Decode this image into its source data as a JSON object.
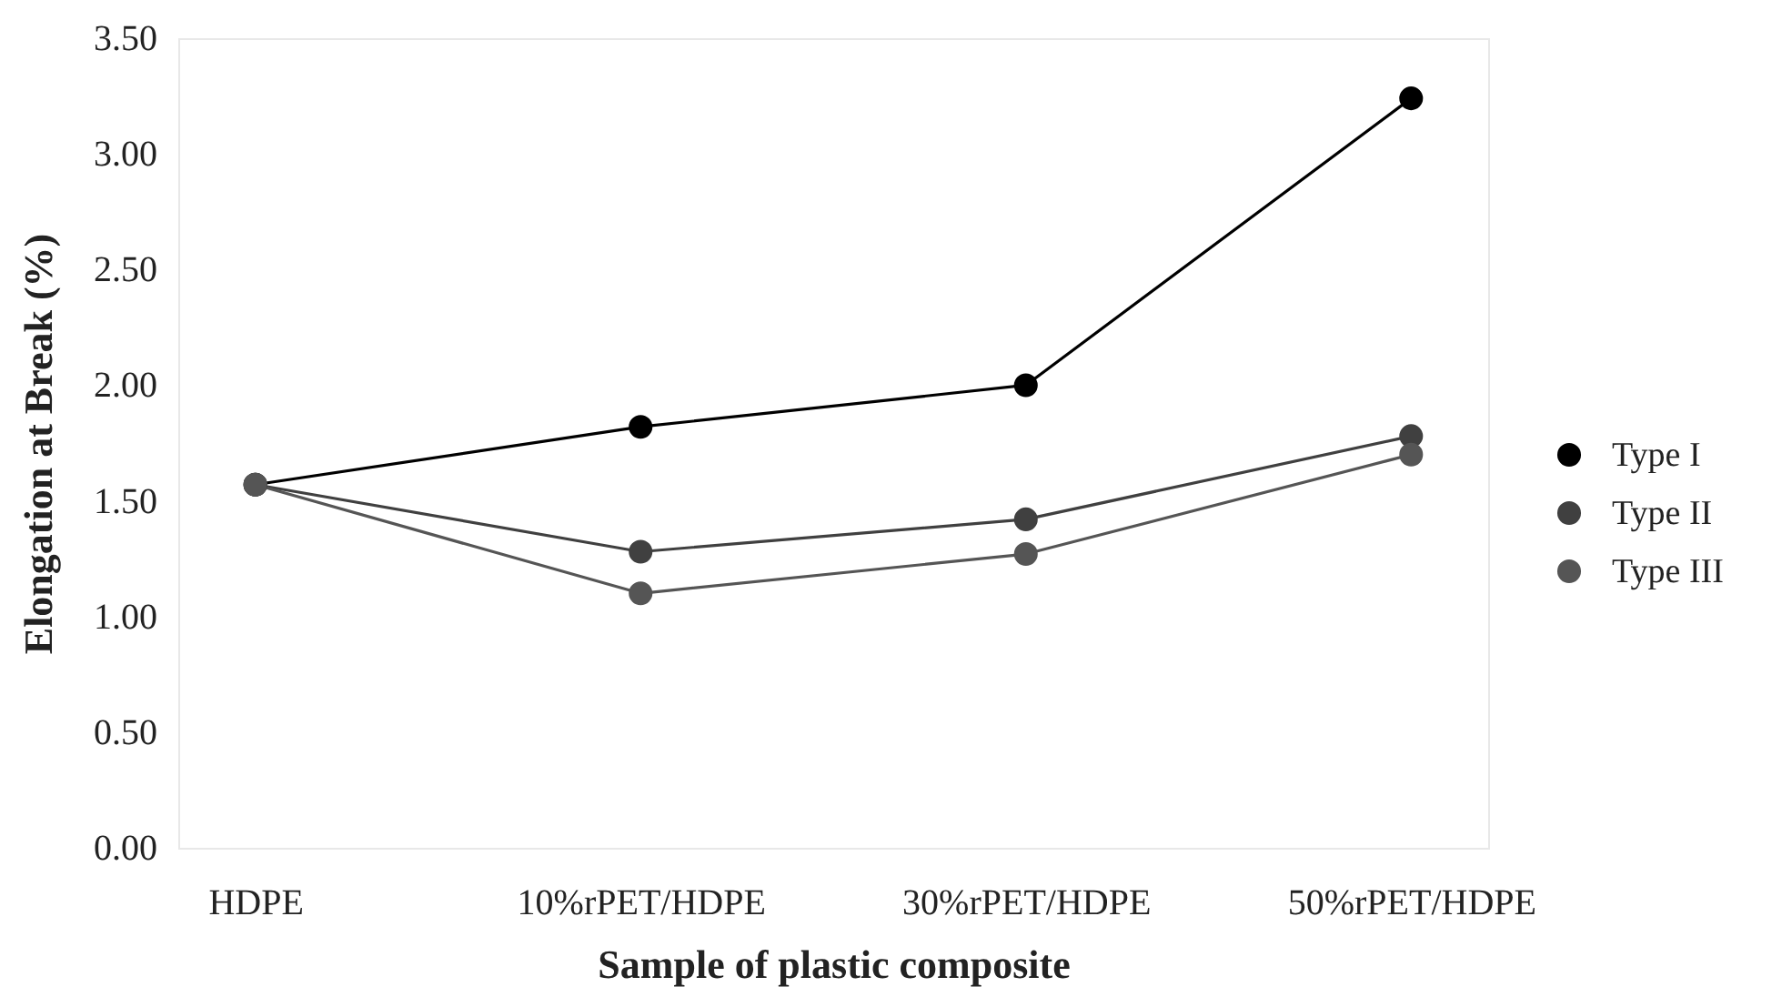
{
  "chart_data": {
    "type": "line",
    "xlabel": "Sample of plastic composite",
    "ylabel": "Elongation at Break (%)",
    "categories": [
      "HDPE",
      "10%rPET/HDPE",
      "30%rPET/HDPE",
      "50%rPET/HDPE"
    ],
    "series": [
      {
        "name": "Type I",
        "color": "#000000",
        "values": [
          1.57,
          1.82,
          2.0,
          3.24
        ]
      },
      {
        "name": "Type II",
        "color": "#404040",
        "values": [
          1.57,
          1.28,
          1.42,
          1.78
        ]
      },
      {
        "name": "Type III",
        "color": "#555555",
        "values": [
          1.57,
          1.1,
          1.27,
          1.7
        ]
      }
    ],
    "ylim": [
      0,
      3.5
    ],
    "yticks": [
      {
        "value": 0,
        "label": "0.00"
      },
      {
        "value": 0.5,
        "label": "0.50"
      },
      {
        "value": 1,
        "label": "1.00"
      },
      {
        "value": 1.5,
        "label": "1.50"
      },
      {
        "value": 2,
        "label": "2.00"
      },
      {
        "value": 2.5,
        "label": "2.50"
      },
      {
        "value": 3,
        "label": "3.00"
      },
      {
        "value": 3.5,
        "label": "3.50"
      }
    ],
    "legend": "right",
    "marker": "circle"
  }
}
